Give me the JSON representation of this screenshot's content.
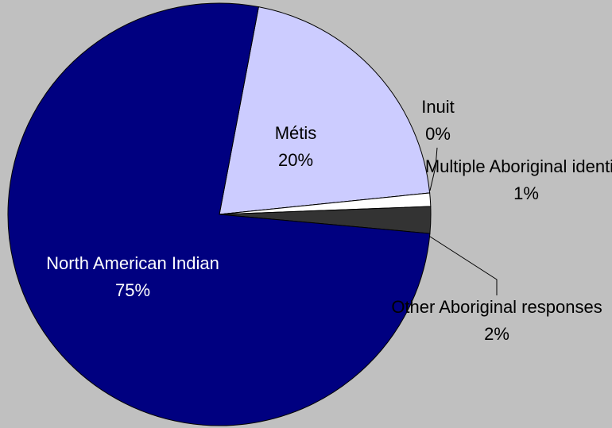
{
  "chart_data": {
    "type": "pie",
    "categories": [
      "Métis",
      "Inuit",
      "Multiple\nAboriginal identity",
      "Other Aboriginal\nresponses",
      "North American Indian"
    ],
    "values": [
      20,
      0,
      1,
      2,
      75
    ],
    "value_labels": [
      "20%",
      "0%",
      "1%",
      "2%",
      "75%"
    ],
    "colors": [
      "#ccccff",
      "#9999cc",
      "#ffffff",
      "#333333",
      "#000080"
    ]
  }
}
